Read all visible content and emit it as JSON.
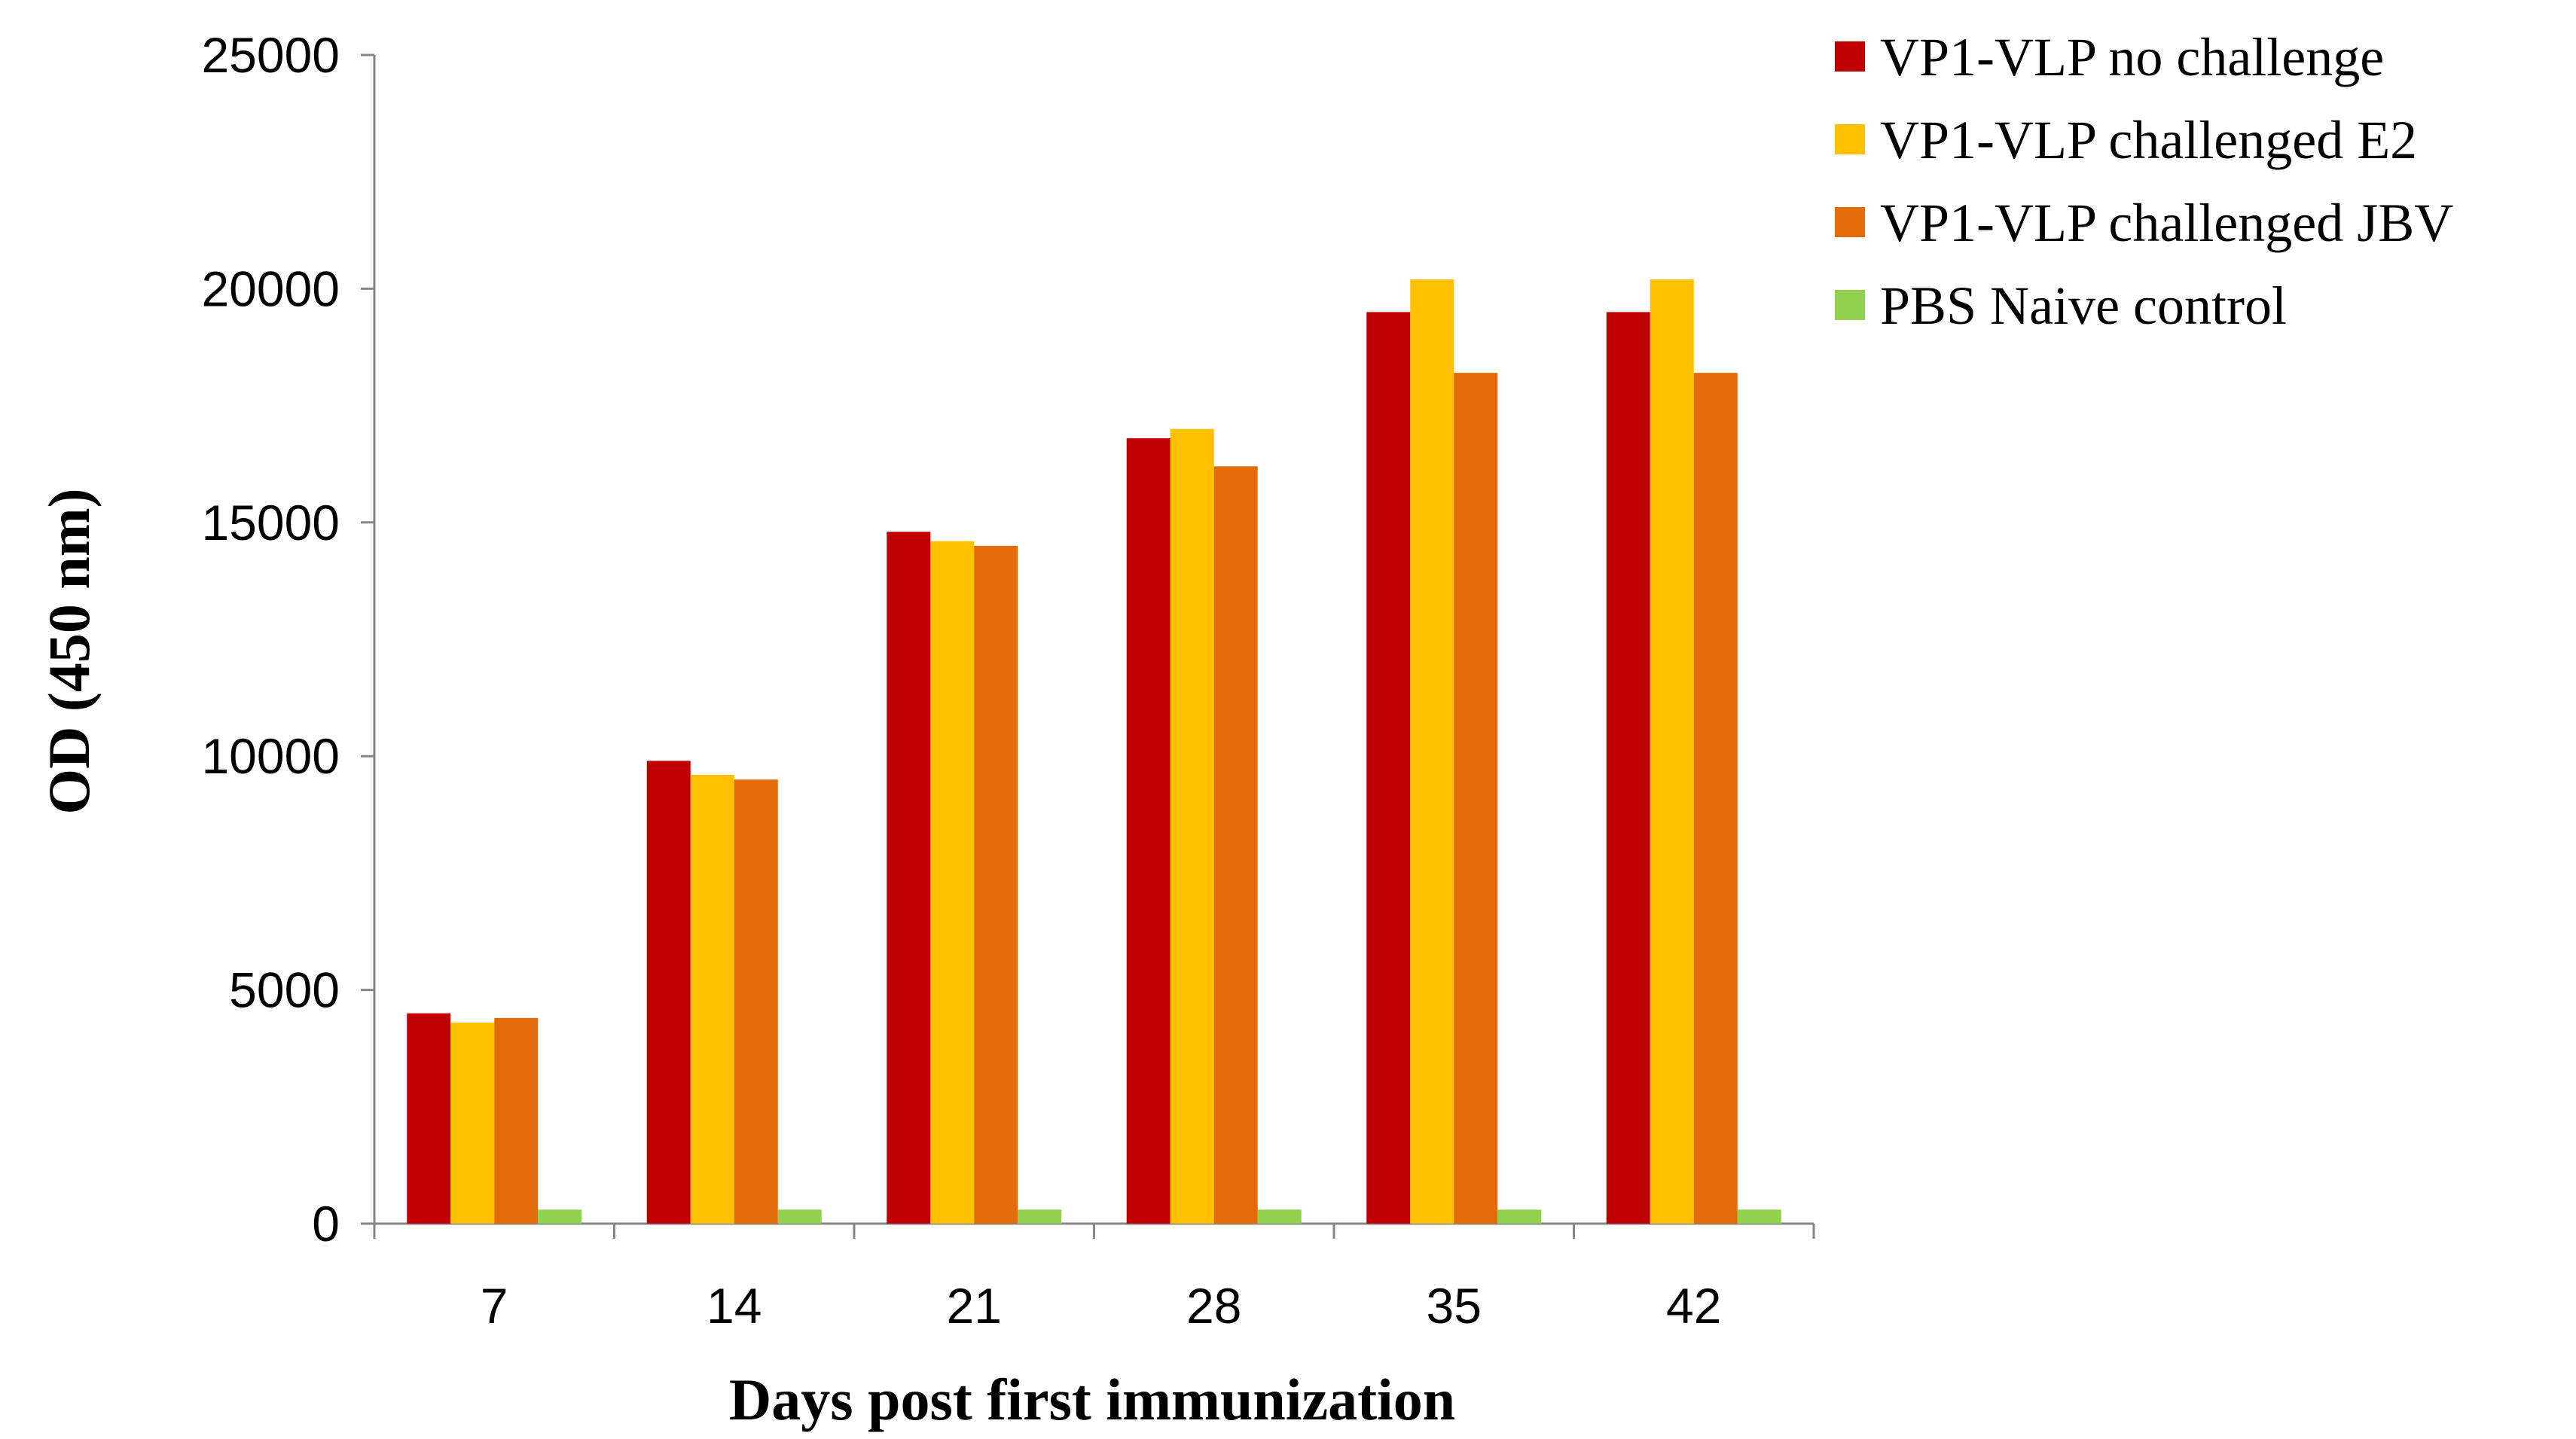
{
  "chart_data": {
    "type": "bar",
    "title": "",
    "xlabel": "Days post first immunization",
    "ylabel": "OD (450 nm)",
    "ylim": [
      0,
      25000
    ],
    "yticks": [
      0,
      5000,
      10000,
      15000,
      20000,
      25000
    ],
    "grid": false,
    "legend_position": "top-right",
    "categories": [
      "7",
      "14",
      "21",
      "28",
      "35",
      "42"
    ],
    "series": [
      {
        "name": "VP1-VLP no challenge",
        "color": "#C00000",
        "values": [
          4500,
          9900,
          14800,
          16800,
          19500,
          19500
        ]
      },
      {
        "name": "VP1-VLP challenged E2",
        "color": "#FFC000",
        "values": [
          4300,
          9600,
          14600,
          17000,
          20200,
          20200
        ]
      },
      {
        "name": "VP1-VLP challenged JBV",
        "color": "#E36C0A",
        "values": [
          4400,
          9500,
          14500,
          16200,
          18200,
          18200
        ]
      },
      {
        "name": "PBS Naive control",
        "color": "#92D050",
        "values": [
          300,
          300,
          300,
          300,
          300,
          300
        ]
      }
    ]
  }
}
